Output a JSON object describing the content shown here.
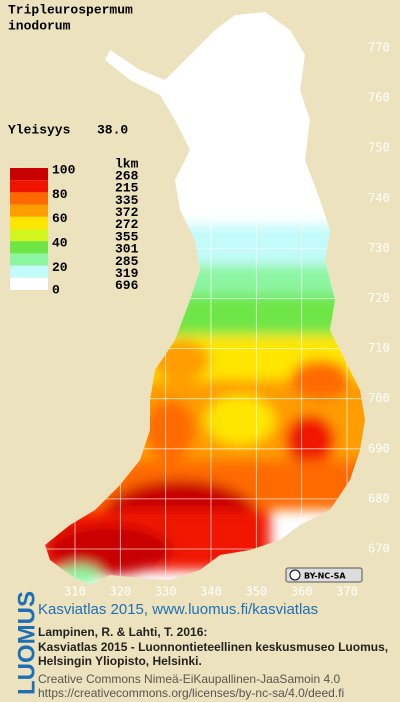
{
  "title_lines": [
    "Tripleurospermum",
    "inodorum"
  ],
  "frequency": {
    "label": "Yleisyys",
    "value": "38.0"
  },
  "legend": {
    "header": "lkm",
    "scale_labels": [
      100,
      80,
      60,
      40,
      20,
      0
    ],
    "classes": [
      {
        "color": "#c80000",
        "count": 268
      },
      {
        "color": "#f01400",
        "count": 215
      },
      {
        "color": "#ff6a00",
        "count": 335
      },
      {
        "color": "#ff9c00",
        "count": 372
      },
      {
        "color": "#ffe600",
        "count": 272
      },
      {
        "color": "#d2f51e",
        "count": 355
      },
      {
        "color": "#6ee646",
        "count": 301
      },
      {
        "color": "#8cf5a0",
        "count": 285
      },
      {
        "color": "#c3fafa",
        "count": 319
      },
      {
        "color": "#ffffff",
        "count": 696
      }
    ]
  },
  "grid": {
    "x_labels": [
      310,
      320,
      330,
      340,
      350,
      360,
      370
    ],
    "y_labels": [
      670,
      680,
      690,
      700,
      710,
      720,
      730,
      740,
      750,
      760,
      770
    ]
  },
  "license_badge": "BY-NC-SA",
  "footer": {
    "brand": "LUOMUS",
    "link": "Kasviatlas 2015, www.luomus.fi/kasviatlas",
    "citation": [
      "Lampinen, R. & Lahti, T. 2016:",
      "Kasviatlas 2015 - Luonnontieteellinen keskusmuseo Luomus,",
      "Helsingin Yliopisto, Helsinki."
    ],
    "license": [
      "Creative Commons Nimeä-EiKaupallinen-JaaSamoin 4.0",
      "https://creativecommons.org/licenses/by-nc-sa/4.0/deed.fi"
    ]
  }
}
